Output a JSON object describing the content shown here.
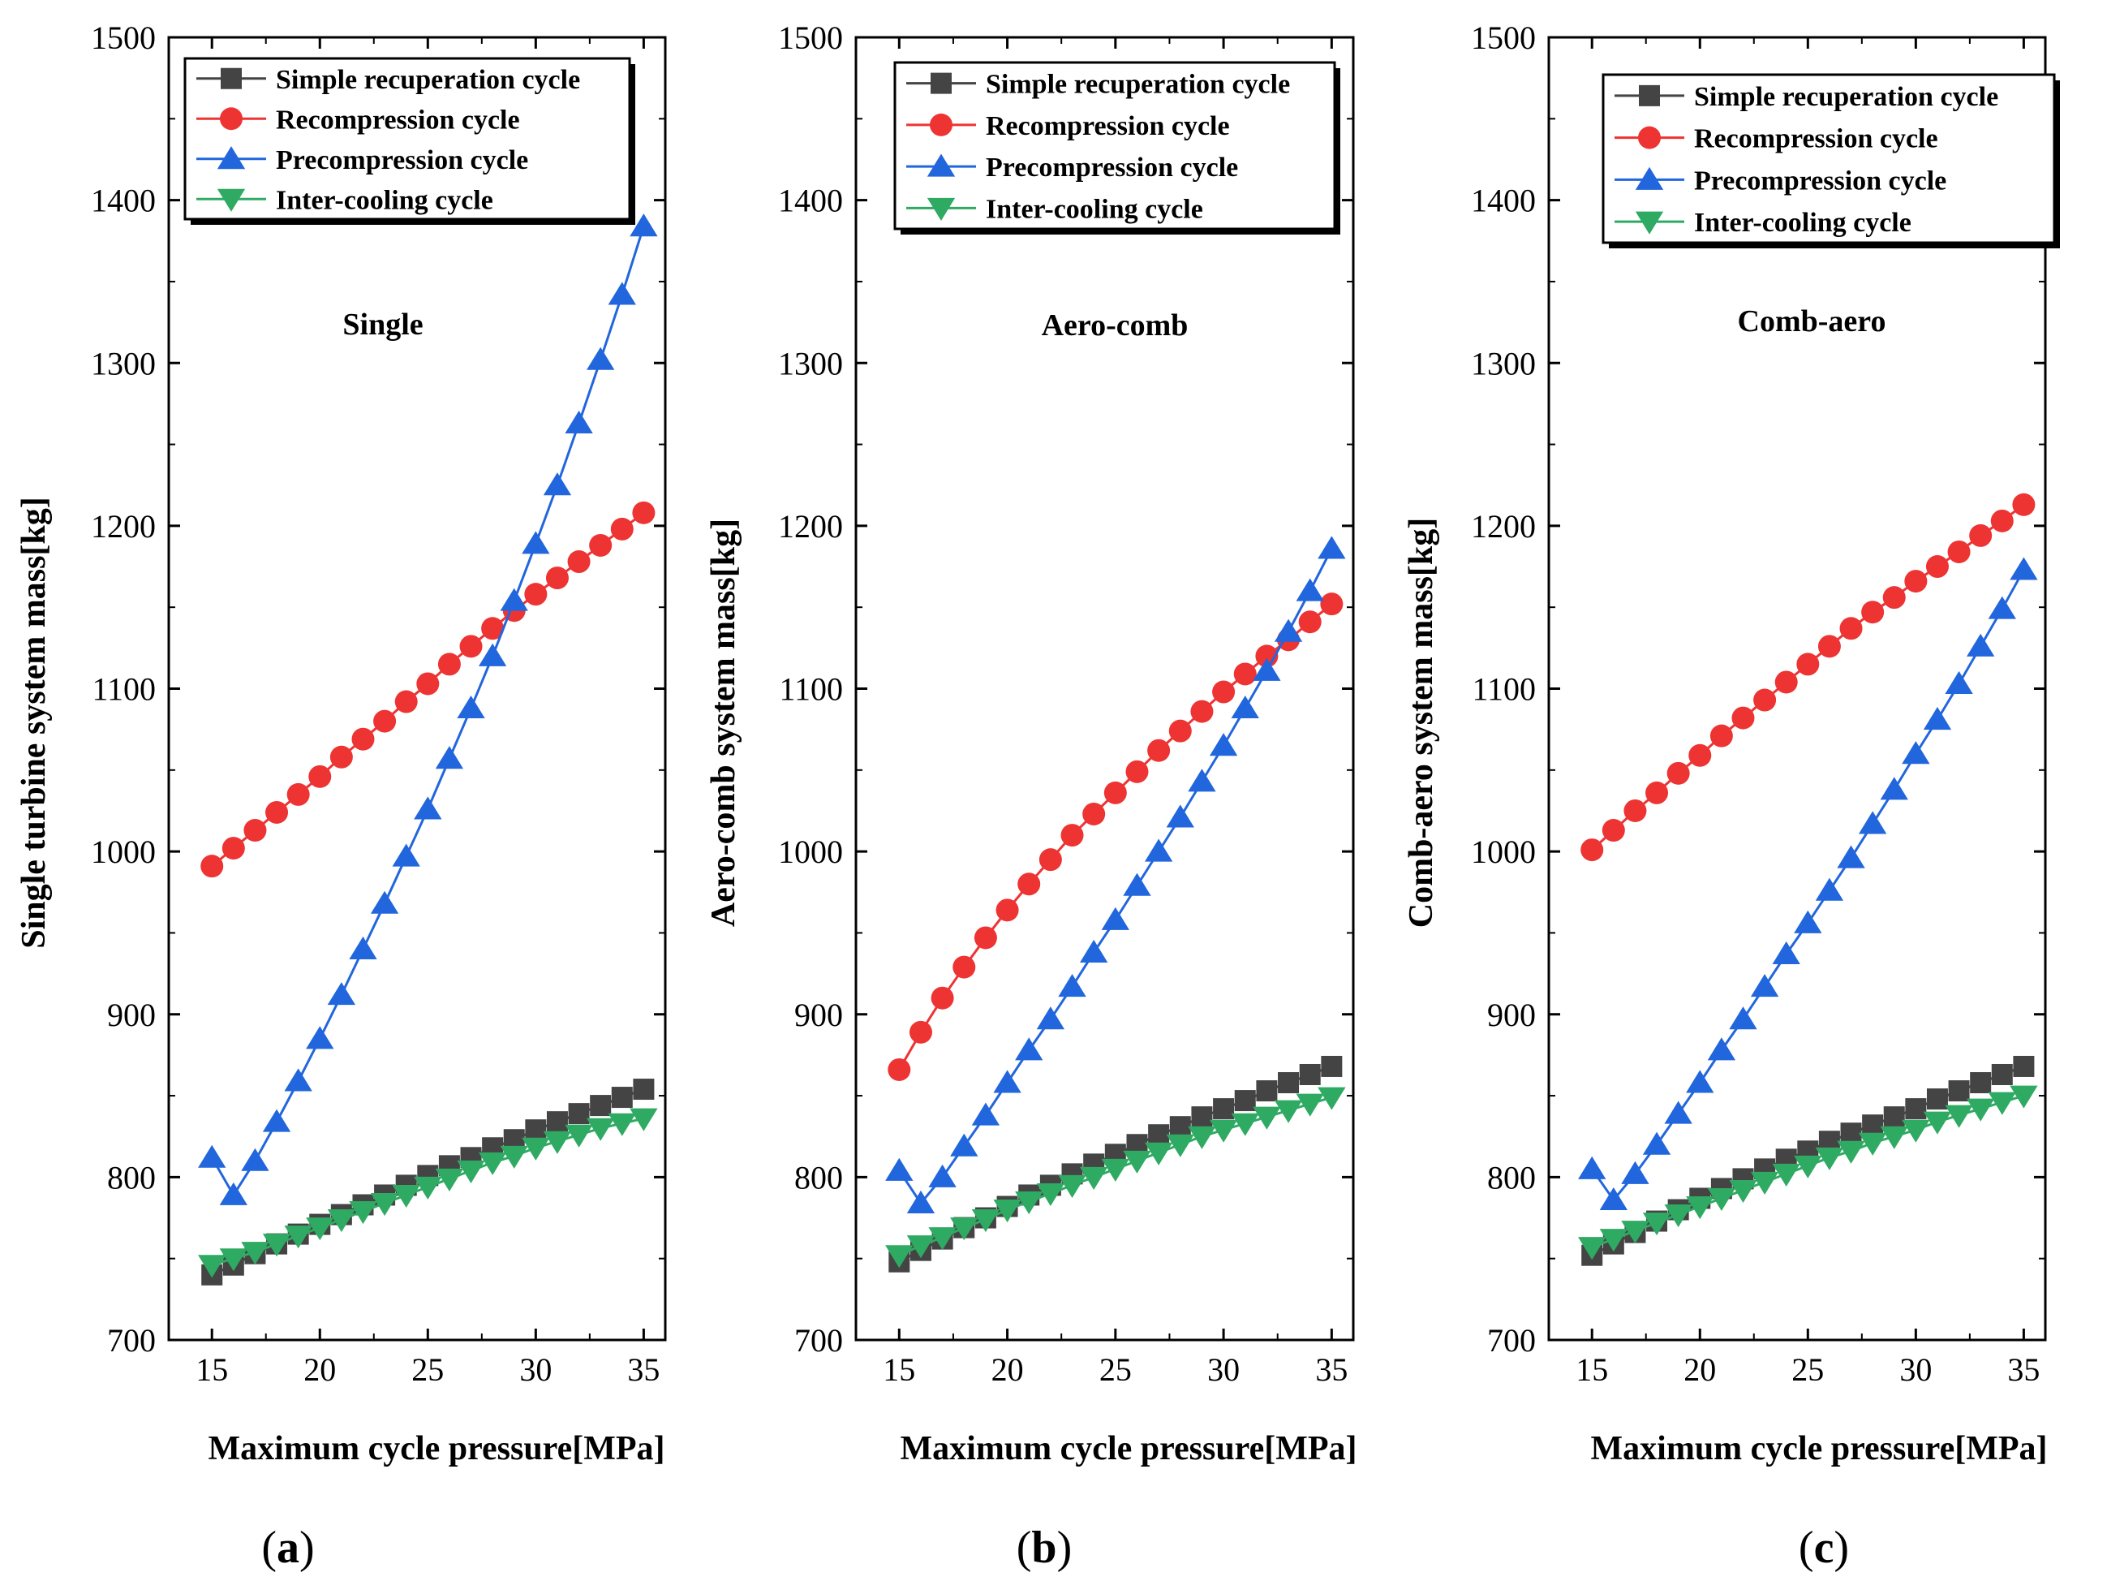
{
  "figure": {
    "subfigure_labels": [
      {
        "open": "(",
        "letter": "a",
        "close": ")"
      },
      {
        "open": "(",
        "letter": "b",
        "close": ")"
      },
      {
        "open": "(",
        "letter": "c",
        "close": ")"
      }
    ]
  },
  "colors": {
    "simple": "#444444",
    "recompression": "#ee3333",
    "precompression": "#2266dd",
    "intercooling": "#2faa63"
  },
  "chart_data": [
    {
      "type": "line",
      "title": "Single",
      "xlabel": "Maximum cycle pressure[MPa]",
      "ylabel": "Single turbine system mass[kg]",
      "xlim": [
        13,
        36
      ],
      "ylim": [
        700,
        1500
      ],
      "xticks": [
        15,
        20,
        25,
        30,
        35
      ],
      "yticks": [
        700,
        800,
        900,
        1000,
        1100,
        1200,
        1300,
        1400,
        1500
      ],
      "legend_position": "top-left",
      "x": [
        15,
        16,
        17,
        18,
        19,
        20,
        21,
        22,
        23,
        24,
        25,
        26,
        27,
        28,
        29,
        30,
        31,
        32,
        33,
        34,
        35
      ],
      "series": [
        {
          "name": "Simple recuperation cycle",
          "marker": "square",
          "color": "#444444",
          "values": [
            740,
            746,
            753,
            759,
            765,
            771,
            777,
            783,
            789,
            795,
            801,
            807,
            812,
            818,
            823,
            829,
            834,
            839,
            844,
            849,
            854
          ]
        },
        {
          "name": "Recompression cycle",
          "marker": "circle",
          "color": "#ee3333",
          "values": [
            991,
            1002,
            1013,
            1024,
            1035,
            1046,
            1058,
            1069,
            1080,
            1092,
            1103,
            1115,
            1126,
            1137,
            1148,
            1158,
            1168,
            1178,
            1188,
            1198,
            1208
          ]
        },
        {
          "name": "Precompression cycle",
          "marker": "triangle-up",
          "color": "#2266dd",
          "values": [
            812,
            789,
            810,
            834,
            859,
            885,
            912,
            940,
            968,
            997,
            1026,
            1057,
            1088,
            1120,
            1154,
            1189,
            1225,
            1263,
            1302,
            1342,
            1384
          ]
        },
        {
          "name": "Inter-cooling cycle",
          "marker": "triangle-down",
          "color": "#2faa63",
          "values": [
            746,
            750,
            754,
            759,
            764,
            769,
            774,
            779,
            784,
            789,
            794,
            799,
            804,
            809,
            813,
            818,
            822,
            826,
            830,
            833,
            836
          ]
        }
      ]
    },
    {
      "type": "line",
      "title": "Aero-comb",
      "xlabel": "Maximum cycle pressure[MPa]",
      "ylabel": "Aero-comb system mass[kg]",
      "xlim": [
        13,
        36
      ],
      "ylim": [
        700,
        1500
      ],
      "xticks": [
        15,
        20,
        25,
        30,
        35
      ],
      "yticks": [
        700,
        800,
        900,
        1000,
        1100,
        1200,
        1300,
        1400,
        1500
      ],
      "legend_position": "top-right",
      "x": [
        15,
        16,
        17,
        18,
        19,
        20,
        21,
        22,
        23,
        24,
        25,
        26,
        27,
        28,
        29,
        30,
        31,
        32,
        33,
        34,
        35
      ],
      "series": [
        {
          "name": "Simple recuperation cycle",
          "marker": "square",
          "color": "#444444",
          "values": [
            748,
            755,
            762,
            769,
            775,
            782,
            789,
            795,
            802,
            808,
            814,
            820,
            826,
            831,
            837,
            842,
            847,
            853,
            858,
            863,
            868
          ]
        },
        {
          "name": "Recompression cycle",
          "marker": "circle",
          "color": "#ee3333",
          "values": [
            866,
            889,
            910,
            929,
            947,
            964,
            980,
            995,
            1010,
            1023,
            1036,
            1049,
            1062,
            1074,
            1086,
            1098,
            1109,
            1120,
            1130,
            1141,
            1152
          ]
        },
        {
          "name": "Precompression cycle",
          "marker": "triangle-up",
          "color": "#2266dd",
          "values": [
            804,
            784,
            800,
            819,
            838,
            858,
            878,
            897,
            917,
            938,
            958,
            979,
            1000,
            1021,
            1043,
            1065,
            1088,
            1111,
            1135,
            1160,
            1186
          ]
        },
        {
          "name": "Inter-cooling cycle",
          "marker": "triangle-down",
          "color": "#2faa63",
          "values": [
            752,
            758,
            763,
            769,
            774,
            780,
            785,
            790,
            795,
            800,
            805,
            810,
            815,
            820,
            825,
            829,
            833,
            837,
            841,
            845,
            849
          ]
        }
      ]
    },
    {
      "type": "line",
      "title": "Comb-aero",
      "xlabel": "Maximum cycle pressure[MPa]",
      "ylabel": "Comb-aero system mass[kg]",
      "xlim": [
        13,
        36
      ],
      "ylim": [
        700,
        1500
      ],
      "xticks": [
        15,
        20,
        25,
        30,
        35
      ],
      "yticks": [
        700,
        800,
        900,
        1000,
        1100,
        1200,
        1300,
        1400,
        1500
      ],
      "legend_position": "top-right",
      "x": [
        15,
        16,
        17,
        18,
        19,
        20,
        21,
        22,
        23,
        24,
        25,
        26,
        27,
        28,
        29,
        30,
        31,
        32,
        33,
        34,
        35
      ],
      "series": [
        {
          "name": "Simple recuperation cycle",
          "marker": "square",
          "color": "#444444",
          "values": [
            752,
            759,
            766,
            773,
            780,
            787,
            793,
            799,
            805,
            811,
            816,
            822,
            827,
            832,
            837,
            842,
            848,
            853,
            858,
            863,
            868
          ]
        },
        {
          "name": "Recompression cycle",
          "marker": "circle",
          "color": "#ee3333",
          "values": [
            1001,
            1013,
            1025,
            1036,
            1048,
            1059,
            1071,
            1082,
            1093,
            1104,
            1115,
            1126,
            1137,
            1147,
            1156,
            1166,
            1175,
            1184,
            1194,
            1203,
            1213
          ]
        },
        {
          "name": "Precompression cycle",
          "marker": "triangle-up",
          "color": "#2266dd",
          "values": [
            805,
            786,
            802,
            820,
            839,
            858,
            878,
            897,
            917,
            937,
            956,
            976,
            996,
            1017,
            1038,
            1060,
            1081,
            1103,
            1126,
            1149,
            1173
          ]
        },
        {
          "name": "Inter-cooling cycle",
          "marker": "triangle-down",
          "color": "#2faa63",
          "values": [
            757,
            762,
            767,
            772,
            777,
            782,
            787,
            792,
            797,
            802,
            807,
            812,
            816,
            821,
            825,
            829,
            834,
            838,
            842,
            846,
            850
          ]
        }
      ]
    }
  ]
}
